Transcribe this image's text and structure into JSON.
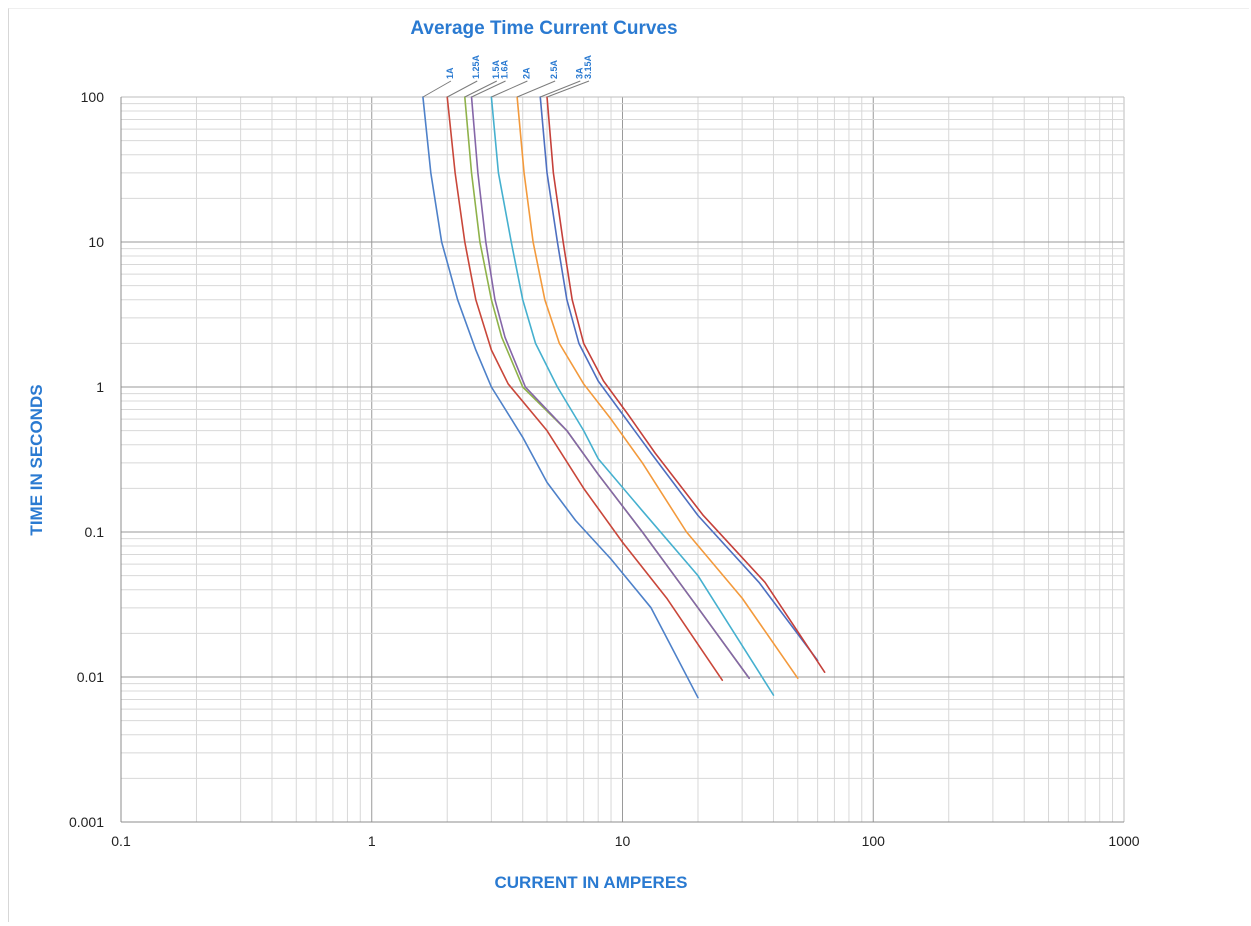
{
  "chart_data": {
    "type": "line",
    "title": "Average Time Current Curves",
    "xlabel": "CURRENT IN AMPERES",
    "ylabel": "TIME IN SECONDS",
    "xscale": "log",
    "yscale": "log",
    "xlim": [
      0.1,
      1000
    ],
    "ylim": [
      0.001,
      100
    ],
    "grid": true,
    "x_tick_labels": [
      "0.1",
      "1",
      "10",
      "100",
      "1000"
    ],
    "y_tick_labels": [
      "0.001",
      "0.01",
      "0.1",
      "1",
      "10",
      "100"
    ],
    "series": [
      {
        "name": "1A",
        "color": "#4e81c9",
        "points": [
          [
            1.6,
            100
          ],
          [
            1.72,
            30
          ],
          [
            1.9,
            10
          ],
          [
            2.2,
            4
          ],
          [
            2.6,
            1.8
          ],
          [
            3.0,
            1.0
          ],
          [
            4.0,
            0.45
          ],
          [
            5.0,
            0.22
          ],
          [
            6.5,
            0.12
          ],
          [
            9.0,
            0.065
          ],
          [
            13.0,
            0.03
          ],
          [
            20.0,
            0.0072
          ]
        ]
      },
      {
        "name": "1.25A",
        "color": "#c9473a",
        "points": [
          [
            2.0,
            100
          ],
          [
            2.15,
            30
          ],
          [
            2.35,
            10
          ],
          [
            2.6,
            4
          ],
          [
            3.0,
            1.8
          ],
          [
            3.5,
            1.05
          ],
          [
            5.0,
            0.5
          ],
          [
            7.0,
            0.2
          ],
          [
            10.0,
            0.085
          ],
          [
            15.0,
            0.035
          ],
          [
            25.0,
            0.0095
          ]
        ]
      },
      {
        "name": "1.5A",
        "color": "#8fb24a",
        "points": [
          [
            2.35,
            100
          ],
          [
            2.5,
            30
          ],
          [
            2.7,
            10
          ],
          [
            3.0,
            4
          ],
          [
            3.3,
            2.2
          ],
          [
            4.0,
            1.0
          ],
          [
            6.0,
            0.5
          ],
          [
            8.0,
            0.25
          ],
          [
            12.0,
            0.1
          ],
          [
            20.0,
            0.03
          ],
          [
            32.0,
            0.0098
          ]
        ]
      },
      {
        "name": "1.6A",
        "color": "#8566a8",
        "points": [
          [
            2.5,
            100
          ],
          [
            2.65,
            30
          ],
          [
            2.85,
            10
          ],
          [
            3.1,
            4
          ],
          [
            3.4,
            2.2
          ],
          [
            4.1,
            1.0
          ],
          [
            6.0,
            0.5
          ],
          [
            8.0,
            0.25
          ],
          [
            12.0,
            0.1
          ],
          [
            20.0,
            0.03
          ],
          [
            32.0,
            0.0098
          ]
        ]
      },
      {
        "name": "2A",
        "color": "#45b0cf",
        "points": [
          [
            3.0,
            100
          ],
          [
            3.2,
            30
          ],
          [
            3.6,
            10
          ],
          [
            4.0,
            4
          ],
          [
            4.5,
            2.0
          ],
          [
            5.5,
            1.0
          ],
          [
            7.0,
            0.5
          ],
          [
            8.0,
            0.32
          ],
          [
            12.0,
            0.14
          ],
          [
            20.0,
            0.05
          ],
          [
            40.0,
            0.0075
          ]
        ]
      },
      {
        "name": "2.5A",
        "color": "#f39a3c",
        "points": [
          [
            3.8,
            100
          ],
          [
            4.05,
            30
          ],
          [
            4.4,
            10
          ],
          [
            4.9,
            4
          ],
          [
            5.6,
            2.0
          ],
          [
            7.0,
            1.05
          ],
          [
            9.0,
            0.6
          ],
          [
            12.0,
            0.3
          ],
          [
            18.0,
            0.1
          ],
          [
            30.0,
            0.035
          ],
          [
            50.0,
            0.0098
          ]
        ]
      },
      {
        "name": "3A",
        "color": "#4e6fc0",
        "points": [
          [
            4.7,
            100
          ],
          [
            5.0,
            30
          ],
          [
            5.5,
            10
          ],
          [
            6.0,
            4
          ],
          [
            6.7,
            2.0
          ],
          [
            8.0,
            1.1
          ],
          [
            10.0,
            0.65
          ],
          [
            13.0,
            0.35
          ],
          [
            20.0,
            0.13
          ],
          [
            35.0,
            0.045
          ],
          [
            60.0,
            0.013
          ]
        ]
      },
      {
        "name": "3.15A",
        "color": "#c5403a",
        "points": [
          [
            5.0,
            100
          ],
          [
            5.3,
            30
          ],
          [
            5.8,
            10
          ],
          [
            6.3,
            4
          ],
          [
            7.0,
            2.0
          ],
          [
            8.4,
            1.1
          ],
          [
            10.5,
            0.65
          ],
          [
            13.5,
            0.35
          ],
          [
            21.0,
            0.13
          ],
          [
            37.0,
            0.045
          ],
          [
            64.0,
            0.0108
          ]
        ]
      }
    ]
  }
}
